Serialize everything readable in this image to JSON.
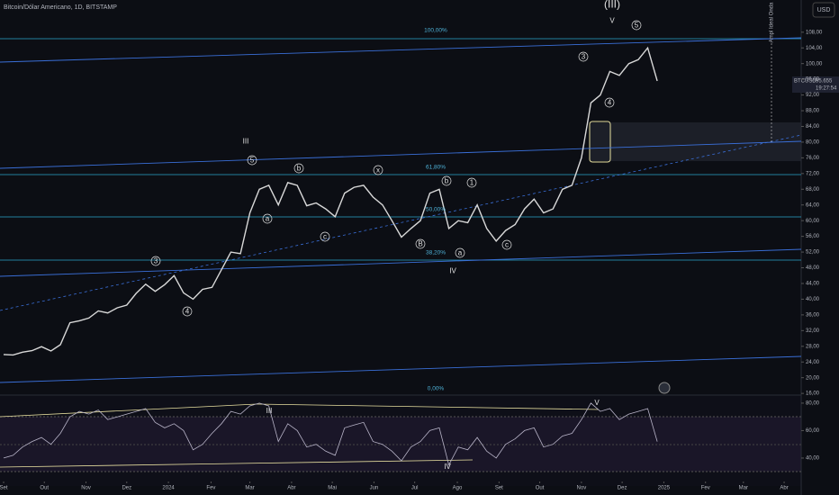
{
  "header": {
    "title": "Bitcoin/Dólar Americano, 1D, BITSTAMP",
    "currency_button": "USD",
    "vertical_note": "Ampl Ideal Onda"
  },
  "price_tag": {
    "symbol": "BTCUSD",
    "price": "95.655",
    "countdown": "19:27:54"
  },
  "fib_levels": [
    "100,00%",
    "61,80%",
    "50,00%",
    "38,20%",
    "0,00%"
  ],
  "annotations": [
    "(III)",
    "V",
    "5",
    "3",
    "4",
    "III",
    "5",
    "b",
    "x",
    "b",
    "1",
    "a",
    "c",
    "B",
    "a",
    "c",
    "IV",
    "4",
    "3"
  ],
  "rsi_annotations": [
    "III",
    "V",
    "IV"
  ],
  "chart_data": [
    {
      "type": "line",
      "color": "#d8d8d8",
      "x": [
        0,
        1,
        2,
        3,
        4,
        5,
        6,
        7,
        8,
        9,
        10,
        11,
        12,
        13,
        14,
        15,
        16,
        17,
        18,
        19,
        20,
        21,
        22,
        23,
        24,
        25,
        26,
        27,
        28,
        29,
        30,
        31,
        32,
        33,
        34,
        35,
        36,
        37,
        38,
        39,
        40,
        41,
        42,
        43,
        44,
        45,
        46,
        47,
        48,
        49,
        50,
        51,
        52,
        53,
        54,
        55,
        56,
        57,
        58,
        59,
        60,
        61,
        62,
        63,
        64,
        65,
        66,
        67,
        68,
        69
      ],
      "series": [
        {
          "name": "BTCUSD",
          "color": "#d8d8d8",
          "values": [
            25.9,
            25.8,
            26.5,
            26.9,
            27.9,
            26.8,
            28.4,
            34.0,
            34.5,
            35.2,
            37.0,
            36.5,
            37.8,
            38.5,
            41.5,
            43.8,
            42.0,
            43.7,
            46.0,
            41.6,
            40.0,
            42.5,
            43.0,
            47.5,
            52.0,
            51.6,
            62.0,
            68.0,
            69.0,
            64.0,
            69.7,
            69.0,
            63.8,
            64.5,
            63.0,
            61.0,
            67.0,
            68.5,
            69.0,
            66.0,
            64.0,
            60.0,
            55.8,
            58.0,
            60.0,
            67.0,
            68.0,
            58.0,
            60.0,
            59.5,
            64.0,
            58.0,
            54.8,
            57.5,
            59.0,
            63.0,
            65.5,
            62.0,
            63.0,
            68.0,
            69.0,
            76.0,
            90.0,
            92.0,
            98.0,
            97.0,
            100.0,
            101.0,
            104.0,
            95.6
          ]
        }
      ],
      "xlim": [
        -0.38,
        84.2
      ],
      "xticks": [
        {
          "value": 0,
          "label": "Set"
        },
        {
          "value": 4.3,
          "label": "Out"
        },
        {
          "value": 8.7,
          "label": "Nov"
        },
        {
          "value": 13,
          "label": "Dez"
        },
        {
          "value": 17.4,
          "label": "2024"
        },
        {
          "value": 21.9,
          "label": "Fev"
        },
        {
          "value": 26,
          "label": "Mar"
        },
        {
          "value": 30.4,
          "label": "Abr"
        },
        {
          "value": 34.7,
          "label": "Mai"
        },
        {
          "value": 39.1,
          "label": "Jun"
        },
        {
          "value": 43.4,
          "label": "Jul"
        },
        {
          "value": 47.9,
          "label": "Ago"
        },
        {
          "value": 52.3,
          "label": "Set"
        },
        {
          "value": 56.6,
          "label": "Out"
        },
        {
          "value": 61,
          "label": "Nov"
        },
        {
          "value": 65.3,
          "label": "Dez"
        },
        {
          "value": 69.7,
          "label": "2025"
        },
        {
          "value": 74.1,
          "label": "Fev"
        },
        {
          "value": 78.1,
          "label": "Mar"
        },
        {
          "value": 82.4,
          "label": "Abr"
        }
      ],
      "ylim": [
        15.8,
        116.2
      ],
      "yticks": [
        {
          "value": 16,
          "label": "16,00"
        },
        {
          "value": 20,
          "label": "20,00"
        },
        {
          "value": 24,
          "label": "24,00"
        },
        {
          "value": 28,
          "label": "28,00"
        },
        {
          "value": 32,
          "label": "32,00"
        },
        {
          "value": 36,
          "label": "36,00"
        },
        {
          "value": 40,
          "label": "40,00"
        },
        {
          "value": 44,
          "label": "44,00"
        },
        {
          "value": 48,
          "label": "48,00"
        },
        {
          "value": 52,
          "label": "52,00"
        },
        {
          "value": 56,
          "label": "56,00"
        },
        {
          "value": 60,
          "label": "60,00"
        },
        {
          "value": 64,
          "label": "64,00"
        },
        {
          "value": 68,
          "label": "68,00"
        },
        {
          "value": 72,
          "label": "72,00"
        },
        {
          "value": 76,
          "label": "76,00"
        },
        {
          "value": 80,
          "label": "80,00"
        },
        {
          "value": 84,
          "label": "84,00"
        },
        {
          "value": 88,
          "label": "88,00"
        },
        {
          "value": 92,
          "label": "92,00"
        },
        {
          "value": 96,
          "label": "96,00"
        },
        {
          "value": 100,
          "label": "100,00"
        },
        {
          "value": 104,
          "label": "104,00"
        },
        {
          "value": 108,
          "label": "108,00"
        }
      ]
    },
    {
      "type": "line",
      "color": "#b8b4c8",
      "series": [
        {
          "name": "RSI",
          "color": "#b8b4c8",
          "values": [
            40,
            42,
            48,
            52,
            55,
            50,
            58,
            70,
            74,
            72,
            75,
            68,
            70,
            72,
            74,
            76,
            66,
            62,
            65,
            60,
            46,
            50,
            58,
            65,
            74,
            72,
            78,
            80,
            78,
            52,
            65,
            60,
            48,
            50,
            45,
            42,
            62,
            64,
            66,
            52,
            50,
            45,
            38,
            48,
            52,
            60,
            62,
            35,
            48,
            46,
            55,
            45,
            40,
            50,
            54,
            60,
            62,
            48,
            50,
            56,
            58,
            68,
            80,
            74,
            76,
            68,
            72,
            74,
            76,
            52
          ]
        }
      ],
      "ylim": [
        14.4,
        85.2
      ],
      "yticks": [
        {
          "value": 80,
          "label": "80,00"
        },
        {
          "value": 60,
          "label": "60,00"
        },
        {
          "value": 40,
          "label": "40,00"
        }
      ]
    }
  ]
}
